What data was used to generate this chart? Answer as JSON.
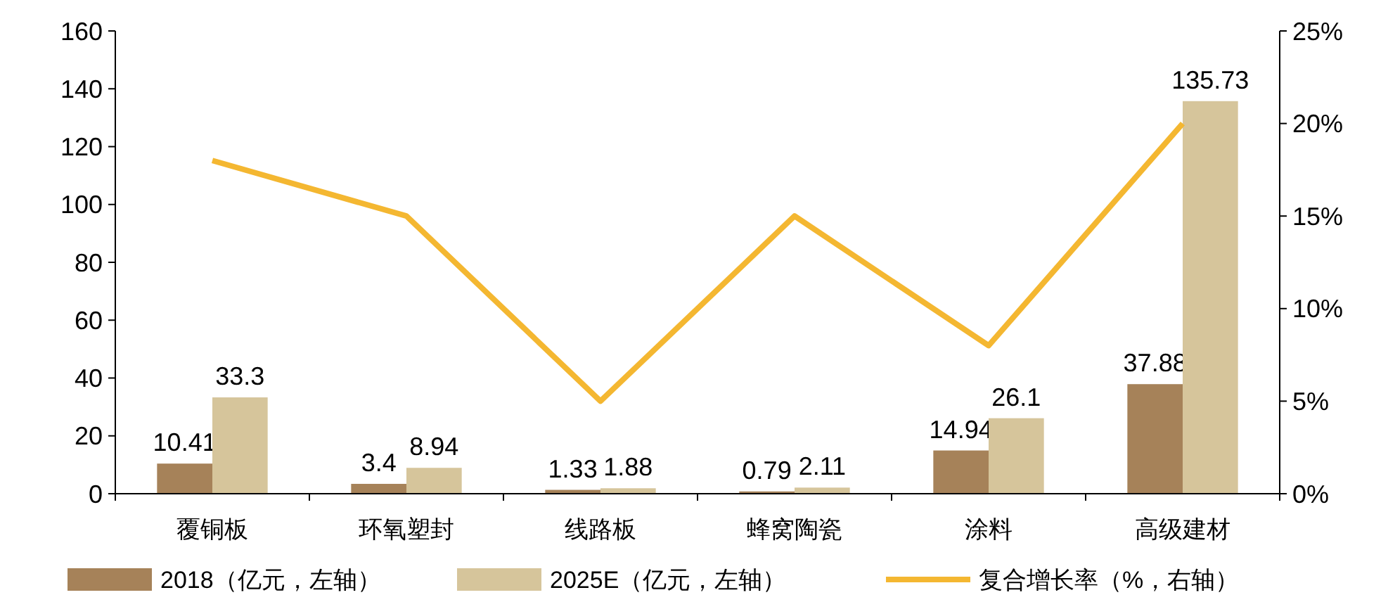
{
  "chart_data": {
    "type": "bar",
    "categories": [
      "覆铜板",
      "环氧塑封",
      "线路板",
      "蜂窝陶瓷",
      "涂料",
      "高级建材"
    ],
    "series": [
      {
        "name": "2018（亿元，左轴）",
        "color": "#a68259",
        "values": [
          10.41,
          3.4,
          1.33,
          0.79,
          14.94,
          37.88
        ],
        "value_labels": [
          "10.41",
          "3.4",
          "1.33",
          "0.79",
          "14.94",
          "37.88"
        ]
      },
      {
        "name": "2025E（亿元，左轴）",
        "color": "#d6c59b",
        "values": [
          33.3,
          8.94,
          1.88,
          2.11,
          26.1,
          135.73
        ],
        "value_labels": [
          "33.3",
          "8.94",
          "1.88",
          "2.11",
          "26.1",
          "135.73"
        ]
      },
      {
        "name": "复合增长率（%，右轴）",
        "type": "line",
        "axis": "y2",
        "color": "#f4b731",
        "values": [
          18,
          15,
          5,
          15,
          8,
          20
        ]
      }
    ],
    "ylim": [
      0,
      160
    ],
    "yticks": [
      0,
      20,
      40,
      60,
      80,
      100,
      120,
      140,
      160
    ],
    "y2lim": [
      0,
      25
    ],
    "y2ticks": [
      {
        "value": 0,
        "label": "0%"
      },
      {
        "value": 5,
        "label": "5%"
      },
      {
        "value": 10,
        "label": "10%"
      },
      {
        "value": 15,
        "label": "15%"
      },
      {
        "value": 20,
        "label": "20%"
      },
      {
        "value": 25,
        "label": "25%"
      }
    ],
    "grid": false,
    "legend": "bottom",
    "marker": "none",
    "line_style": "solid"
  }
}
